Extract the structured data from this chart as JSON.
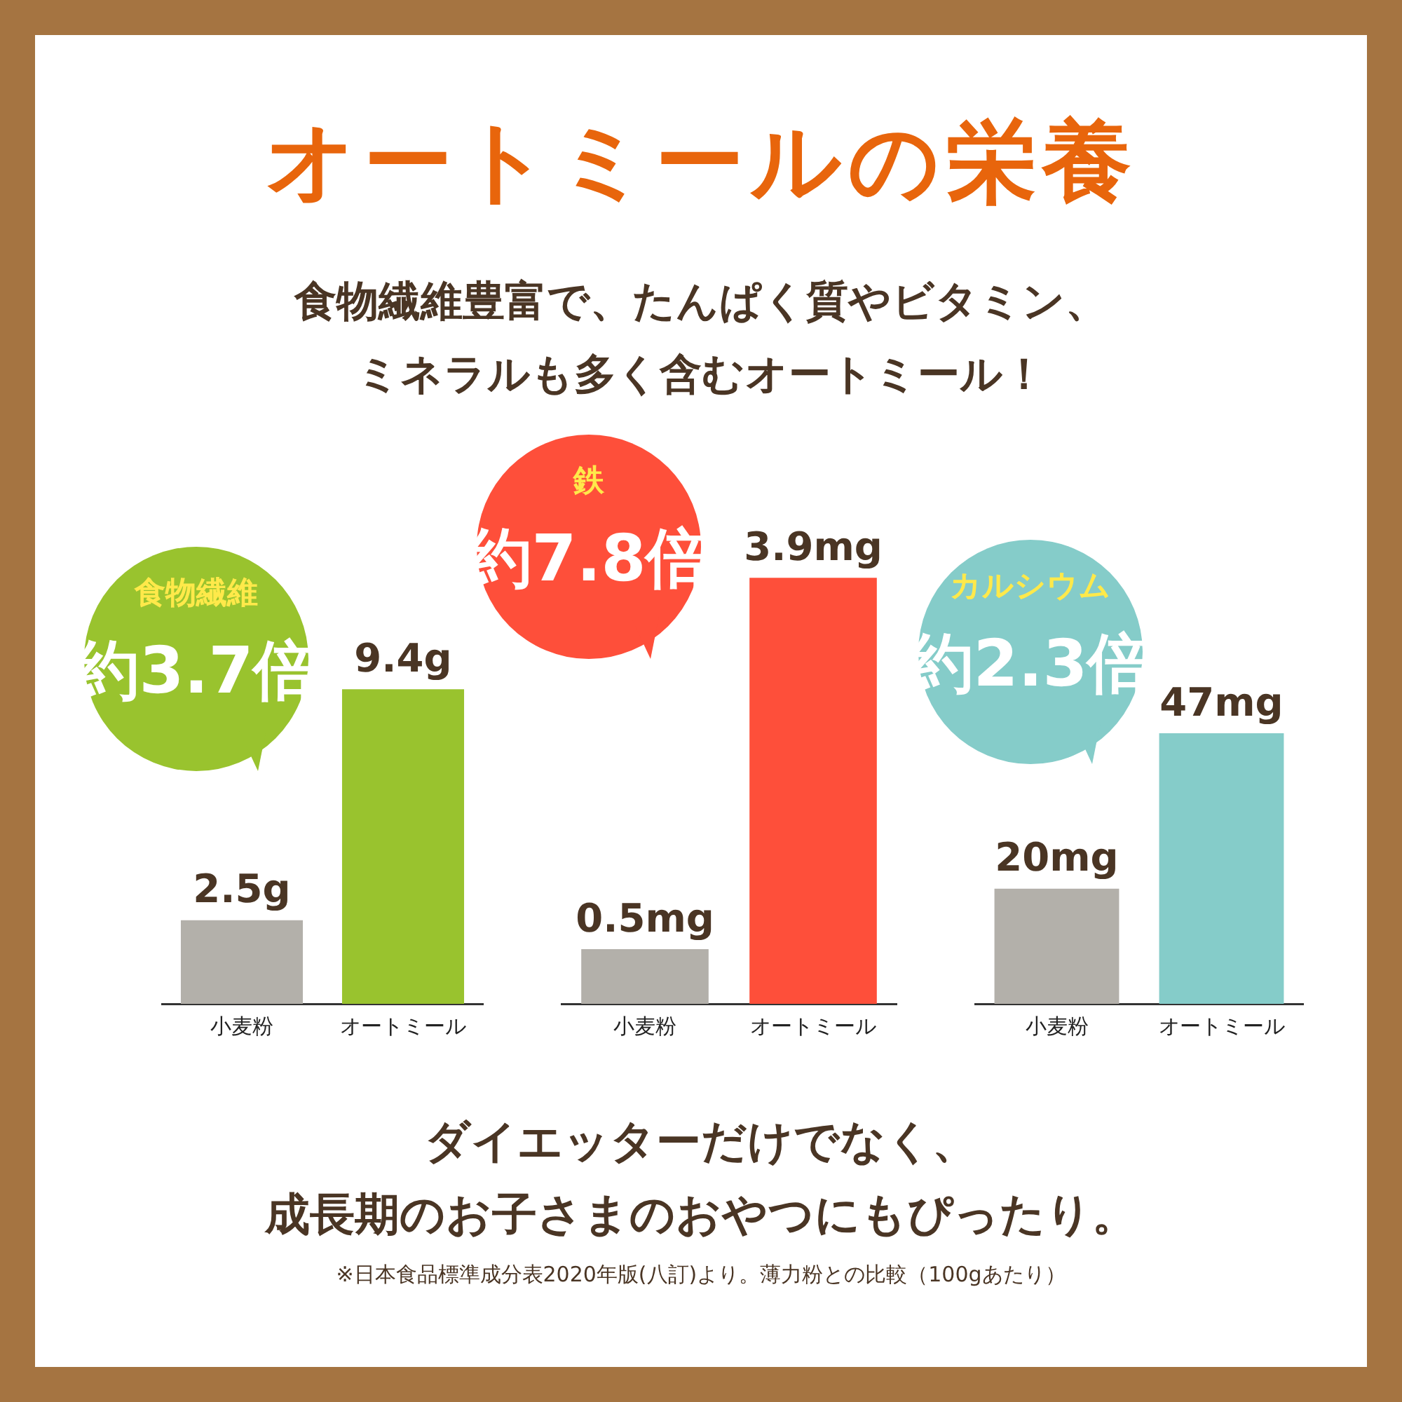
{
  "chart_data": [
    {
      "type": "bar",
      "title": "オートミールの栄養",
      "subtitle": "食物繊維豊富で、たんぱく質やビタミン、ミネラルも多く含むオートミール！",
      "categories": [
        "小麦粉",
        "オートミール"
      ],
      "values": [
        2.5,
        9.4
      ],
      "colors": [
        "#b3b0aa",
        "#99c32e"
      ],
      "value_labels": [
        "2.5g",
        "9.4g"
      ],
      "annotations": [
        "食物繊維",
        "約3.7倍"
      ],
      "tick_labels": "x"
    },
    {
      "type": "bar",
      "categories": [
        "小麦粉",
        "オートミール"
      ],
      "values": [
        0.5,
        3.9
      ],
      "colors": [
        "#b3b0aa",
        "#fe4f3a"
      ],
      "value_labels": [
        "0.5mg",
        "3.9mg"
      ],
      "annotations": [
        "鉄",
        "約7.8倍"
      ],
      "tick_labels": "x"
    },
    {
      "type": "bar",
      "categories": [
        "小麦粉",
        "オートミール"
      ],
      "values": [
        20,
        47
      ],
      "colors": [
        "#b3b0aa",
        "#85ccc9"
      ],
      "value_labels": [
        "20mg",
        "47mg"
      ],
      "annotations": [
        "カルシウム",
        "約2.3倍",
        "ダイエッターだけでなく、",
        "成長期のお子さまのおやつにもぴったり。",
        "※日本食品標準成分表2020年版(八訂)より。薄力粉との比較（100gあたり）"
      ],
      "tick_labels": "x"
    }
  ]
}
